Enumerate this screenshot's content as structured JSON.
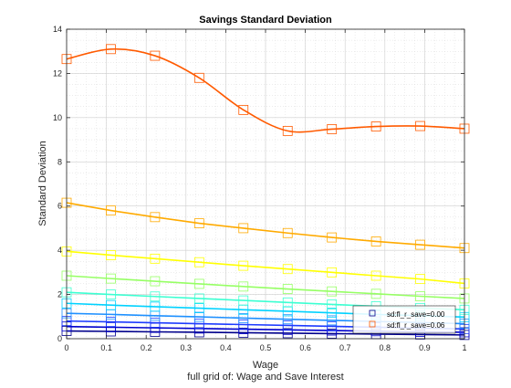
{
  "chart_data": {
    "type": "line",
    "title": "Savings Standard Deviation",
    "xlabel": "Wage",
    "ylabel": "Standard Deviation",
    "caption": "full grid of: Wage and Save Interest",
    "xlim": [
      0,
      1
    ],
    "ylim": [
      0,
      14
    ],
    "xticks": [
      0,
      0.1,
      0.2,
      0.3,
      0.4,
      0.5,
      0.6,
      0.7,
      0.8,
      0.9,
      1
    ],
    "xtick_labels": [
      "0",
      "0.1",
      "0.2",
      "0.3",
      "0.4",
      "0.5",
      "0.6",
      "0.7",
      "0.8",
      "0.9",
      "1"
    ],
    "yticks": [
      0,
      2,
      4,
      6,
      8,
      10,
      12,
      14
    ],
    "ytick_labels": [
      "0",
      "2",
      "4",
      "6",
      "8",
      "10",
      "12",
      "14"
    ],
    "grid": true,
    "minor_grid": true,
    "legend_placement": "bottom-right",
    "legend": [
      "sd:fl_r_save=0.00",
      "sd:fl_r_save=0.06"
    ],
    "x": [
      0,
      0.1111,
      0.2222,
      0.3333,
      0.4444,
      0.5556,
      0.6667,
      0.7778,
      0.8889,
      1
    ],
    "series": [
      {
        "color": "#00008b",
        "values": [
          0.35,
          0.33,
          0.31,
          0.29,
          0.27,
          0.25,
          0.23,
          0.21,
          0.19,
          0.17
        ]
      },
      {
        "color": "#0000cd",
        "values": [
          0.55,
          0.52,
          0.49,
          0.46,
          0.43,
          0.4,
          0.37,
          0.34,
          0.31,
          0.29
        ]
      },
      {
        "color": "#1e3cff",
        "values": [
          0.8,
          0.76,
          0.72,
          0.68,
          0.64,
          0.6,
          0.56,
          0.52,
          0.48,
          0.44
        ]
      },
      {
        "color": "#1e90ff",
        "values": [
          1.15,
          1.1,
          1.04,
          0.99,
          0.93,
          0.88,
          0.83,
          0.78,
          0.73,
          0.68
        ]
      },
      {
        "color": "#00d2ff",
        "values": [
          1.6,
          1.52,
          1.45,
          1.38,
          1.31,
          1.24,
          1.17,
          1.1,
          1.04,
          0.98
        ]
      },
      {
        "color": "#3cffd2",
        "values": [
          2.1,
          2.0,
          1.91,
          1.82,
          1.73,
          1.64,
          1.55,
          1.47,
          1.39,
          1.31
        ]
      },
      {
        "color": "#96ff64",
        "values": [
          2.85,
          2.72,
          2.6,
          2.48,
          2.36,
          2.25,
          2.14,
          2.03,
          1.92,
          1.82
        ]
      },
      {
        "color": "#ffff00",
        "values": [
          3.95,
          3.78,
          3.62,
          3.46,
          3.3,
          3.15,
          3.0,
          2.85,
          2.7,
          2.5
        ]
      },
      {
        "color": "#ffaa00",
        "values": [
          6.15,
          5.8,
          5.5,
          5.22,
          5.0,
          4.78,
          4.58,
          4.4,
          4.25,
          4.1
        ]
      },
      {
        "color": "#ff5a00",
        "values": [
          12.65,
          13.1,
          12.8,
          11.8,
          10.35,
          9.4,
          9.48,
          9.6,
          9.62,
          9.5
        ]
      }
    ]
  }
}
